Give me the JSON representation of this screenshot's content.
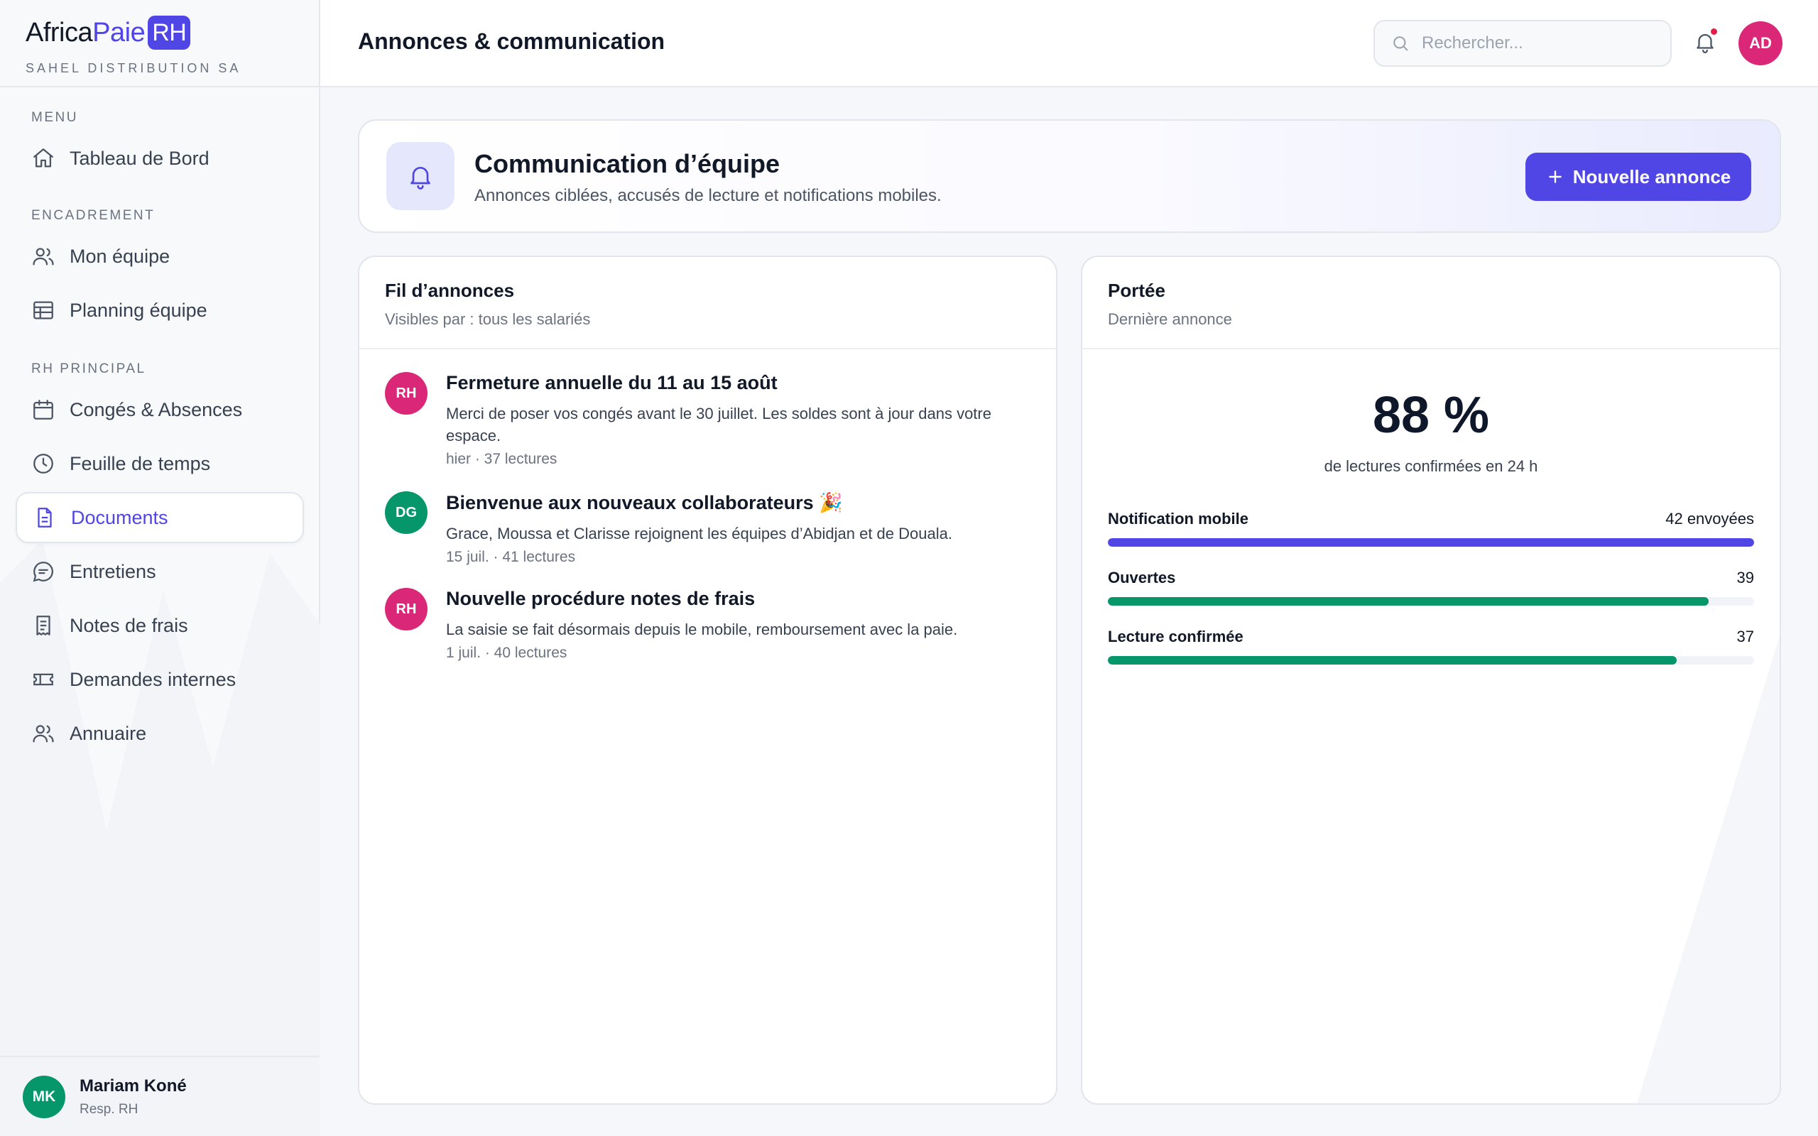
{
  "brand": {
    "name_part1": "Africa",
    "name_part2": "Paie",
    "badge": "RH",
    "company": "SAHEL DISTRIBUTION SA"
  },
  "sidebar": {
    "sections": [
      {
        "label": "MENU",
        "items": [
          {
            "label": "Tableau de Bord",
            "icon": "home-icon"
          }
        ]
      },
      {
        "label": "ENCADREMENT",
        "items": [
          {
            "label": "Mon équipe",
            "icon": "users-icon"
          },
          {
            "label": "Planning équipe",
            "icon": "table-icon"
          }
        ]
      },
      {
        "label": "RH PRINCIPAL",
        "items": [
          {
            "label": "Congés & Absences",
            "icon": "calendar-icon"
          },
          {
            "label": "Feuille de temps",
            "icon": "clock-icon"
          },
          {
            "label": "Documents",
            "icon": "document-icon",
            "active": true
          },
          {
            "label": "Entretiens",
            "icon": "chat-icon"
          },
          {
            "label": "Notes de frais",
            "icon": "receipt-icon"
          },
          {
            "label": "Demandes internes",
            "icon": "ticket-icon"
          },
          {
            "label": "Annuaire",
            "icon": "users-icon"
          }
        ]
      }
    ],
    "user": {
      "initials": "MK",
      "name": "Mariam Koné",
      "role": "Resp. RH",
      "color": "#059669"
    }
  },
  "header": {
    "title": "Annonces & communication",
    "search_placeholder": "Rechercher...",
    "avatar_initials": "AD",
    "avatar_color": "#db2777"
  },
  "banner": {
    "title": "Communication d’équipe",
    "subtitle": "Annonces ciblées, accusés de lecture et notifications mobiles.",
    "button_label": "Nouvelle annonce"
  },
  "feed": {
    "title": "Fil d’annonces",
    "subtitle": "Visibles par : tous les salariés",
    "items": [
      {
        "initials": "RH",
        "color": "#db2777",
        "title": "Fermeture annuelle du 11 au 15 août",
        "text": "Merci de poser vos congés avant le 30 juillet. Les soldes sont à jour dans votre espace.",
        "meta": "hier · 37 lectures"
      },
      {
        "initials": "DG",
        "color": "#059669",
        "title": "Bienvenue aux nouveaux collaborateurs 🎉",
        "text": "Grace, Moussa et Clarisse rejoignent les équipes d’Abidjan et de Douala.",
        "meta": "15 juil. · 41 lectures"
      },
      {
        "initials": "RH",
        "color": "#db2777",
        "title": "Nouvelle procédure notes de frais",
        "text": "La saisie se fait désormais depuis le mobile, remboursement avec la paie.",
        "meta": "1 juil. · 40 lectures"
      }
    ]
  },
  "reach": {
    "title": "Portée",
    "subtitle": "Dernière annonce",
    "percent": "88 %",
    "caption": "de lectures confirmées en 24 h",
    "stats": [
      {
        "label": "Notification mobile",
        "value": "42 envoyées",
        "fraction": 1.0,
        "color": "#4f46e5"
      },
      {
        "label": "Ouvertes",
        "value": "39",
        "fraction": 0.93,
        "color": "#059669"
      },
      {
        "label": "Lecture confirmée",
        "value": "37",
        "fraction": 0.88,
        "color": "#059669"
      }
    ]
  }
}
